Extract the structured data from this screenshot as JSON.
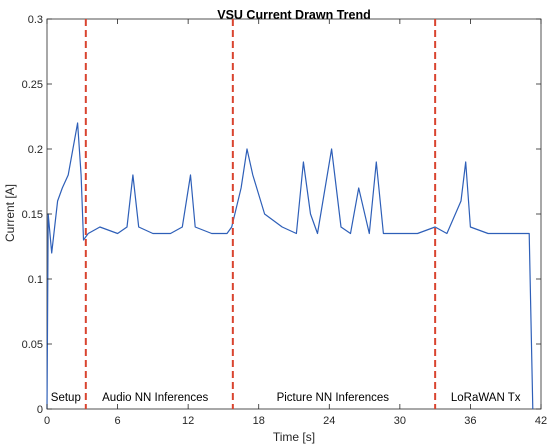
{
  "chart_data": {
    "type": "line",
    "title": "VSU Current Drawn Trend",
    "xlabel": "Time [s]",
    "ylabel": "Current [A]",
    "xlim": [
      0,
      42
    ],
    "ylim": [
      0,
      0.3
    ],
    "xticks": [
      0,
      6,
      12,
      18,
      24,
      30,
      36,
      42
    ],
    "yticks": [
      0,
      0.05,
      0.1,
      0.15,
      0.2,
      0.25,
      0.3
    ],
    "xtick_labels": [
      "0",
      "6",
      "12",
      "18",
      "24",
      "30",
      "36",
      "42"
    ],
    "ytick_labels": [
      "0",
      "0.05",
      "0.1",
      "0.15",
      "0.2",
      "0.25",
      "0.3"
    ],
    "grid": false,
    "series": [
      {
        "color": "#2e5fb8",
        "points": [
          [
            0,
            0
          ],
          [
            0.1,
            0.15
          ],
          [
            0.4,
            0.12
          ],
          [
            0.9,
            0.16
          ],
          [
            1.3,
            0.17
          ],
          [
            1.8,
            0.18
          ],
          [
            2.2,
            0.2
          ],
          [
            2.6,
            0.22
          ],
          [
            2.9,
            0.18
          ],
          [
            3.1,
            0.13
          ],
          [
            3.5,
            0.135
          ],
          [
            4.5,
            0.14
          ],
          [
            6.0,
            0.135
          ],
          [
            6.8,
            0.14
          ],
          [
            7.3,
            0.18
          ],
          [
            7.8,
            0.14
          ],
          [
            9.0,
            0.135
          ],
          [
            10.5,
            0.135
          ],
          [
            11.5,
            0.14
          ],
          [
            12.2,
            0.18
          ],
          [
            12.6,
            0.14
          ],
          [
            14.0,
            0.135
          ],
          [
            15.3,
            0.135
          ],
          [
            15.7,
            0.14
          ],
          [
            16.5,
            0.17
          ],
          [
            17.0,
            0.2
          ],
          [
            17.5,
            0.18
          ],
          [
            18.5,
            0.15
          ],
          [
            20.0,
            0.14
          ],
          [
            21.2,
            0.135
          ],
          [
            21.8,
            0.19
          ],
          [
            22.4,
            0.15
          ],
          [
            23.0,
            0.135
          ],
          [
            24.2,
            0.2
          ],
          [
            25.0,
            0.14
          ],
          [
            25.8,
            0.135
          ],
          [
            26.5,
            0.17
          ],
          [
            27.4,
            0.135
          ],
          [
            28.0,
            0.19
          ],
          [
            28.6,
            0.135
          ],
          [
            30.0,
            0.135
          ],
          [
            31.5,
            0.135
          ],
          [
            33.0,
            0.14
          ],
          [
            34.0,
            0.135
          ],
          [
            35.2,
            0.16
          ],
          [
            35.6,
            0.19
          ],
          [
            36.0,
            0.14
          ],
          [
            37.5,
            0.135
          ],
          [
            39.0,
            0.135
          ],
          [
            40.5,
            0.135
          ],
          [
            41.0,
            0.135
          ],
          [
            41.3,
            0.0
          ]
        ]
      }
    ],
    "phase_boundaries": [
      3.3,
      15.8,
      33.0
    ],
    "phase_boundary_color": "#d9442f",
    "phase_labels": [
      {
        "text": "Setup",
        "x": 1.6
      },
      {
        "text": "Audio NN Inferences",
        "x": 9.2
      },
      {
        "text": "Picture NN Inferences",
        "x": 24.3
      },
      {
        "text": "LoRaWAN Tx",
        "x": 37.3
      }
    ]
  }
}
